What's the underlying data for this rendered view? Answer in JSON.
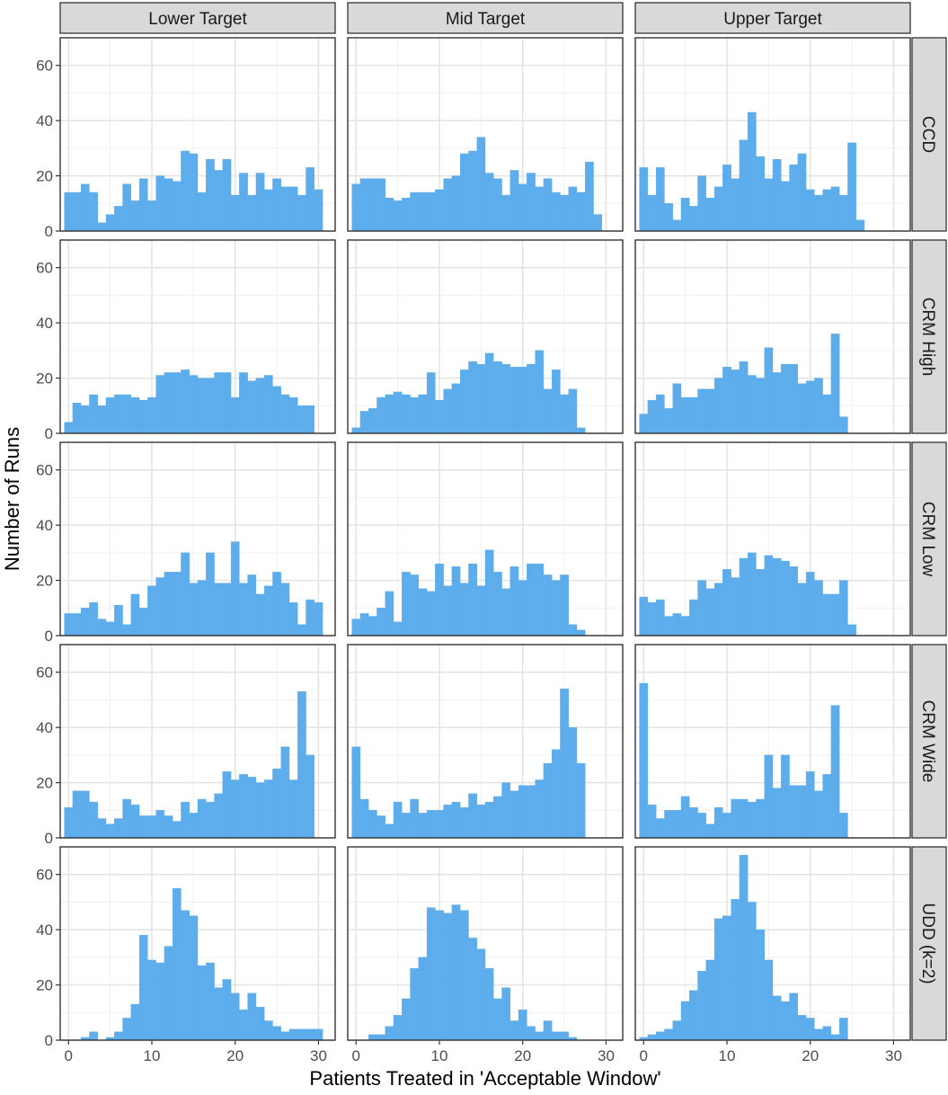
{
  "chart_data": {
    "type": "bar",
    "subtype": "faceted-histogram",
    "xlabel": "Patients Treated in 'Acceptable Window'",
    "ylabel": "Number of Runs",
    "xlim": [
      -1,
      32
    ],
    "ylim": [
      0,
      70
    ],
    "x_ticks": [
      0,
      10,
      20,
      30
    ],
    "y_ticks": [
      0,
      20,
      40,
      60
    ],
    "grid": true,
    "bin_start": 0,
    "bin_width": 1,
    "bar_color": "#5DADEC",
    "columns": [
      "Lower Target",
      "Mid Target",
      "Upper Target"
    ],
    "rows": [
      "CCD",
      "CRM High",
      "CRM Low",
      "CRM Wide",
      "UDD (k=2)"
    ],
    "panels": [
      {
        "row": "CCD",
        "column": "Lower Target",
        "values": [
          14,
          14,
          17,
          14,
          3,
          6,
          9,
          17,
          11,
          19,
          11,
          20,
          19,
          18,
          29,
          28,
          14,
          26,
          22,
          26,
          13,
          21,
          13,
          21,
          15,
          19,
          16,
          16,
          13,
          23,
          15
        ]
      },
      {
        "row": "CCD",
        "column": "Mid Target",
        "values": [
          17,
          19,
          19,
          19,
          12,
          11,
          12,
          14,
          14,
          14,
          15,
          19,
          20,
          28,
          29,
          34,
          21,
          19,
          13,
          22,
          17,
          21,
          16,
          19,
          14,
          13,
          16,
          14,
          25,
          6
        ]
      },
      {
        "row": "CCD",
        "column": "Upper Target",
        "values": [
          23,
          13,
          23,
          10,
          4,
          12,
          9,
          20,
          12,
          16,
          24,
          19,
          33,
          43,
          27,
          19,
          26,
          18,
          24,
          28,
          15,
          13,
          15,
          16,
          13,
          32,
          4
        ]
      },
      {
        "row": "CRM High",
        "column": "Lower Target",
        "values": [
          4,
          11,
          10,
          14,
          10,
          13,
          14,
          14,
          13,
          12,
          13,
          21,
          22,
          22,
          23,
          21,
          20,
          20,
          22,
          22,
          13,
          22,
          19,
          20,
          21,
          17,
          14,
          13,
          10,
          10
        ]
      },
      {
        "row": "CRM High",
        "column": "Mid Target",
        "values": [
          2,
          8,
          9,
          13,
          14,
          15,
          14,
          13,
          14,
          22,
          12,
          16,
          18,
          23,
          26,
          25,
          29,
          26,
          25,
          24,
          24,
          25,
          30,
          16,
          23,
          14,
          16,
          2
        ]
      },
      {
        "row": "CRM High",
        "column": "Upper Target",
        "values": [
          7,
          12,
          14,
          9,
          18,
          13,
          13,
          16,
          16,
          20,
          24,
          23,
          26,
          21,
          20,
          31,
          22,
          25,
          25,
          18,
          19,
          20,
          14,
          36,
          6
        ]
      },
      {
        "row": "CRM Low",
        "column": "Lower Target",
        "values": [
          8,
          8,
          10,
          12,
          6,
          5,
          11,
          4,
          15,
          10,
          18,
          21,
          23,
          23,
          30,
          19,
          20,
          30,
          19,
          19,
          34,
          19,
          22,
          15,
          18,
          23,
          19,
          12,
          4,
          13,
          12
        ]
      },
      {
        "row": "CRM Low",
        "column": "Mid Target",
        "values": [
          6,
          8,
          7,
          10,
          16,
          5,
          23,
          22,
          17,
          16,
          26,
          18,
          25,
          19,
          26,
          18,
          31,
          23,
          17,
          25,
          20,
          26,
          26,
          22,
          20,
          22,
          4,
          2
        ]
      },
      {
        "row": "CRM Low",
        "column": "Upper Target",
        "values": [
          14,
          12,
          13,
          7,
          8,
          7,
          13,
          20,
          17,
          19,
          24,
          21,
          28,
          30,
          24,
          29,
          28,
          27,
          25,
          19,
          23,
          20,
          15,
          15,
          20,
          4
        ]
      },
      {
        "row": "CRM Wide",
        "column": "Lower Target",
        "values": [
          11,
          17,
          17,
          13,
          7,
          5,
          7,
          14,
          12,
          8,
          8,
          10,
          8,
          6,
          13,
          9,
          14,
          13,
          16,
          24,
          21,
          23,
          22,
          20,
          21,
          25,
          33,
          21,
          53,
          30
        ]
      },
      {
        "row": "CRM Wide",
        "column": "Mid Target",
        "values": [
          33,
          14,
          10,
          8,
          5,
          13,
          9,
          14,
          9,
          10,
          10,
          12,
          13,
          11,
          16,
          12,
          13,
          15,
          20,
          17,
          19,
          19,
          21,
          27,
          32,
          54,
          40,
          27
        ]
      },
      {
        "row": "CRM Wide",
        "column": "Upper Target",
        "values": [
          56,
          12,
          7,
          10,
          10,
          15,
          11,
          9,
          5,
          11,
          9,
          14,
          14,
          13,
          14,
          30,
          18,
          30,
          19,
          19,
          24,
          17,
          23,
          48,
          9
        ]
      },
      {
        "row": "UDD (k=2)",
        "column": "Lower Target",
        "values": [
          0,
          0,
          1,
          3,
          0,
          1,
          3,
          8,
          13,
          38,
          29,
          28,
          34,
          55,
          47,
          45,
          27,
          28,
          19,
          22,
          17,
          11,
          17,
          12,
          7,
          5,
          3,
          4,
          4,
          4,
          4
        ]
      },
      {
        "row": "UDD (k=2)",
        "column": "Mid Target",
        "values": [
          0,
          0,
          2,
          2,
          5,
          9,
          15,
          26,
          30,
          48,
          47,
          46,
          49,
          47,
          37,
          33,
          26,
          15,
          19,
          7,
          11,
          5,
          3,
          7,
          3,
          3,
          1
        ]
      },
      {
        "row": "UDD (k=2)",
        "column": "Upper Target",
        "values": [
          1,
          2,
          3,
          4,
          7,
          14,
          18,
          25,
          29,
          44,
          45,
          51,
          67,
          50,
          40,
          29,
          16,
          14,
          17,
          9,
          8,
          4,
          5,
          2,
          8
        ]
      }
    ]
  }
}
